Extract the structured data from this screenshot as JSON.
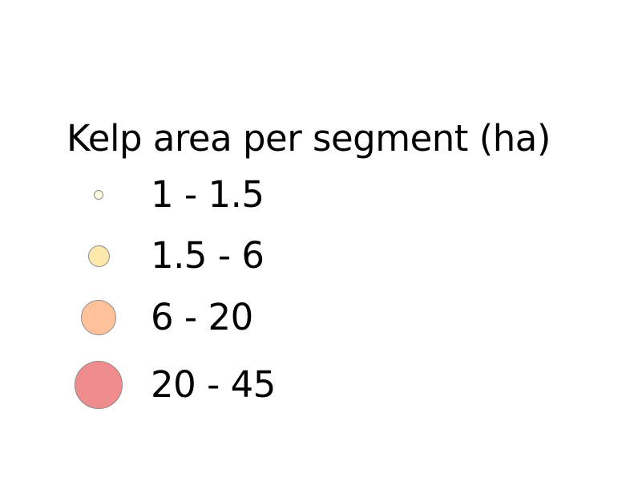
{
  "legend": {
    "title": "Kelp area per segment (ha)",
    "classes": [
      {
        "label": "1 - 1.5",
        "fill": "#fffbe0",
        "outline": "#8c8c8c"
      },
      {
        "label": "1.5 - 6",
        "fill": "#ffe8ab",
        "outline": "#8c8c8c"
      },
      {
        "label": "6 - 20",
        "fill": "#ffc29a",
        "outline": "#8c8c8c"
      },
      {
        "label": "20 - 45",
        "fill": "#f08c8e",
        "outline": "#8c8c8c"
      }
    ]
  }
}
